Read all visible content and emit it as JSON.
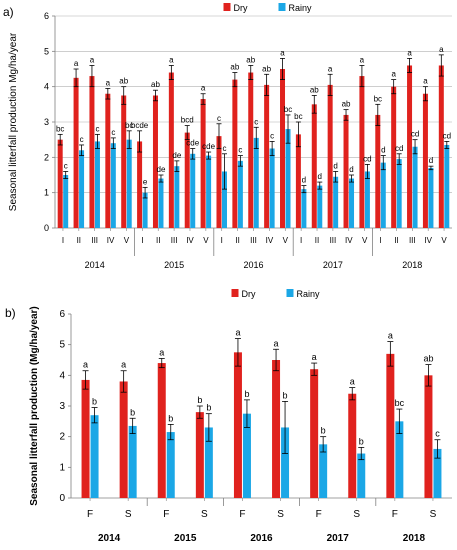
{
  "colors": {
    "dry": "#e0221e",
    "rainy": "#1ba7e6",
    "axis": "#808080",
    "grid": "#b0b0b0",
    "error": "#000000"
  },
  "chart_data": [
    {
      "panel_label": "a)",
      "type": "bar",
      "ylabel": "Seasonal litterfall production Mg/ha/year",
      "ylim": [
        0,
        6
      ],
      "yticks": [
        0,
        1,
        2,
        3,
        4,
        5,
        6
      ],
      "grid": true,
      "legend": {
        "position": "top",
        "entries": [
          "Dry",
          "Rainy"
        ]
      },
      "categories": [
        "I",
        "II",
        "III",
        "IV",
        "V",
        "I",
        "II",
        "III",
        "IV",
        "V",
        "I",
        "II",
        "III",
        "IV",
        "V",
        "I",
        "II",
        "III",
        "IV",
        "V",
        "I",
        "II",
        "III",
        "IV",
        "V"
      ],
      "groups": [
        "2014",
        "2015",
        "2016",
        "2017",
        "2018"
      ],
      "series": [
        {
          "name": "Dry",
          "values": [
            2.5,
            4.25,
            4.3,
            3.8,
            3.75,
            2.45,
            3.75,
            4.4,
            2.7,
            3.65,
            2.6,
            4.2,
            4.4,
            4.05,
            4.5,
            2.65,
            3.5,
            4.05,
            3.2,
            4.3,
            3.2,
            4.0,
            4.6,
            3.8,
            4.6
          ],
          "errors": [
            0.15,
            0.25,
            0.3,
            0.15,
            0.25,
            0.3,
            0.15,
            0.2,
            0.2,
            0.15,
            0.35,
            0.2,
            0.2,
            0.3,
            0.3,
            0.35,
            0.25,
            0.3,
            0.15,
            0.3,
            0.3,
            0.2,
            0.2,
            0.2,
            0.3
          ],
          "labels": [
            "bc",
            "a",
            "a",
            "a",
            "ab",
            "bcde",
            "ab",
            "a",
            "bcd",
            "a",
            "c",
            "ab",
            "ab",
            "ab",
            "a",
            "bc",
            "ab",
            "a",
            "ab",
            "a",
            "bc",
            "a",
            "a",
            "a",
            "a"
          ]
        },
        {
          "name": "Rainy",
          "values": [
            1.5,
            2.2,
            2.45,
            2.4,
            2.5,
            1.0,
            1.4,
            1.75,
            2.1,
            2.05,
            1.6,
            1.9,
            2.55,
            2.25,
            2.8,
            1.1,
            1.2,
            1.45,
            1.4,
            1.6,
            1.85,
            1.95,
            2.3,
            1.7,
            2.35
          ],
          "errors": [
            0.1,
            0.15,
            0.2,
            0.15,
            0.25,
            0.15,
            0.1,
            0.15,
            0.15,
            0.1,
            0.5,
            0.15,
            0.3,
            0.2,
            0.4,
            0.1,
            0.1,
            0.15,
            0.1,
            0.2,
            0.2,
            0.15,
            0.2,
            0.05,
            0.1
          ],
          "labels": [
            "c",
            "c",
            "c",
            "c",
            "bc",
            "e",
            "de",
            "de",
            "cde",
            "cde",
            "c",
            "c",
            "c",
            "c",
            "bc",
            "d",
            "d",
            "d",
            "d",
            "cd",
            "d",
            "cd",
            "cd",
            "d",
            "cd"
          ]
        }
      ]
    },
    {
      "panel_label": "b)",
      "type": "bar",
      "ylabel": "Seasonal litterfall production (Mg/ha/year)",
      "ylim": [
        0,
        6
      ],
      "yticks": [
        0,
        1,
        2,
        3,
        4,
        5,
        6
      ],
      "grid": false,
      "legend": {
        "position": "top",
        "entries": [
          "Dry",
          "Rainy"
        ]
      },
      "categories": [
        "F",
        "S",
        "F",
        "S",
        "F",
        "S",
        "F",
        "S",
        "F",
        "S"
      ],
      "groups": [
        "2014",
        "2015",
        "2016",
        "2017",
        "2018"
      ],
      "series": [
        {
          "name": "Dry",
          "values": [
            3.85,
            3.8,
            4.4,
            2.8,
            4.75,
            4.5,
            4.2,
            3.4,
            4.7,
            4.0
          ],
          "errors": [
            0.3,
            0.35,
            0.15,
            0.2,
            0.45,
            0.35,
            0.2,
            0.2,
            0.4,
            0.35
          ],
          "labels": [
            "a",
            "a",
            "a",
            "b",
            "a",
            "a",
            "a",
            "a",
            "a",
            "ab"
          ]
        },
        {
          "name": "Rainy",
          "values": [
            2.7,
            2.35,
            2.15,
            2.3,
            2.75,
            2.3,
            1.75,
            1.45,
            2.5,
            1.6
          ],
          "errors": [
            0.25,
            0.25,
            0.25,
            0.45,
            0.45,
            0.85,
            0.25,
            0.2,
            0.4,
            0.3
          ],
          "labels": [
            "b",
            "b",
            "b",
            "b",
            "b",
            "b",
            "b",
            "b",
            "bc",
            "c"
          ]
        }
      ]
    }
  ]
}
